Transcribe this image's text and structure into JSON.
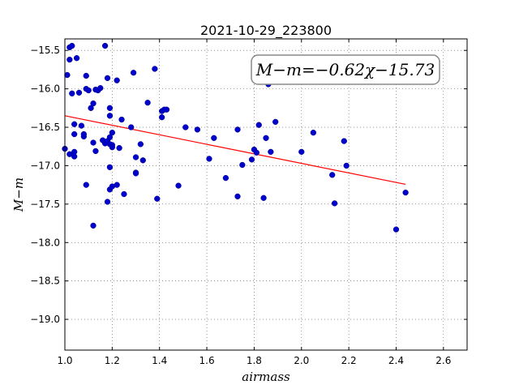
{
  "chart_data": {
    "type": "scatter",
    "title": "2021-10-29_223800",
    "xlabel": "airmass",
    "ylabel": "M−m",
    "xlim": [
      1.0,
      2.7
    ],
    "ylim": [
      -19.4,
      -15.35
    ],
    "y_inverted": true,
    "grid": true,
    "x_ticks": [
      1.0,
      1.2,
      1.4,
      1.6,
      1.8,
      2.0,
      2.2,
      2.4,
      2.6
    ],
    "x_tick_labels": [
      "1.0",
      "1.2",
      "1.4",
      "1.6",
      "1.8",
      "2.0",
      "2.2",
      "2.4",
      "2.6"
    ],
    "y_ticks": [
      -15.5,
      -16.0,
      -16.5,
      -17.0,
      -17.5,
      -18.0,
      -18.5,
      -19.0
    ],
    "y_tick_labels": [
      "−15.5",
      "−16.0",
      "−16.5",
      "−17.0",
      "−17.5",
      "−18.0",
      "−18.5",
      "−19.0"
    ],
    "annotation": "M−m=−0.62χ−15.73",
    "colors": {
      "points": "#0000cc",
      "fit": "#ff0000"
    },
    "points": [
      [
        1.0,
        -16.78
      ],
      [
        1.01,
        -15.82
      ],
      [
        1.02,
        -15.46
      ],
      [
        1.02,
        -15.62
      ],
      [
        1.02,
        -16.85
      ],
      [
        1.03,
        -15.44
      ],
      [
        1.03,
        -16.06
      ],
      [
        1.04,
        -16.46
      ],
      [
        1.04,
        -16.59
      ],
      [
        1.04,
        -16.82
      ],
      [
        1.04,
        -16.88
      ],
      [
        1.05,
        -15.6
      ],
      [
        1.06,
        -16.05
      ],
      [
        1.07,
        -16.48
      ],
      [
        1.08,
        -16.62
      ],
      [
        1.08,
        -16.59
      ],
      [
        1.09,
        -15.83
      ],
      [
        1.09,
        -16.0
      ],
      [
        1.09,
        -17.25
      ],
      [
        1.1,
        -16.02
      ],
      [
        1.11,
        -16.25
      ],
      [
        1.12,
        -16.19
      ],
      [
        1.12,
        -16.7
      ],
      [
        1.12,
        -17.78
      ],
      [
        1.13,
        -16.01
      ],
      [
        1.13,
        -16.81
      ],
      [
        1.14,
        -16.02
      ],
      [
        1.15,
        -15.99
      ],
      [
        1.16,
        -16.67
      ],
      [
        1.17,
        -15.44
      ],
      [
        1.17,
        -16.71
      ],
      [
        1.18,
        -17.47
      ],
      [
        1.18,
        -15.86
      ],
      [
        1.18,
        -16.68
      ],
      [
        1.19,
        -16.25
      ],
      [
        1.19,
        -16.35
      ],
      [
        1.19,
        -16.63
      ],
      [
        1.19,
        -16.72
      ],
      [
        1.19,
        -17.02
      ],
      [
        1.19,
        -17.31
      ],
      [
        1.2,
        -16.57
      ],
      [
        1.2,
        -16.73
      ],
      [
        1.2,
        -16.76
      ],
      [
        1.2,
        -17.27
      ],
      [
        1.22,
        -15.89
      ],
      [
        1.22,
        -17.25
      ],
      [
        1.23,
        -16.77
      ],
      [
        1.24,
        -16.4
      ],
      [
        1.25,
        -17.37
      ],
      [
        1.28,
        -16.5
      ],
      [
        1.29,
        -15.79
      ],
      [
        1.3,
        -16.89
      ],
      [
        1.3,
        -17.09
      ],
      [
        1.3,
        -17.1
      ],
      [
        1.32,
        -16.72
      ],
      [
        1.33,
        -16.93
      ],
      [
        1.35,
        -16.18
      ],
      [
        1.38,
        -15.74
      ],
      [
        1.39,
        -17.43
      ],
      [
        1.41,
        -16.29
      ],
      [
        1.41,
        -16.37
      ],
      [
        1.42,
        -16.27
      ],
      [
        1.43,
        -16.27
      ],
      [
        1.48,
        -17.26
      ],
      [
        1.51,
        -16.5
      ],
      [
        1.56,
        -16.53
      ],
      [
        1.61,
        -16.91
      ],
      [
        1.63,
        -16.64
      ],
      [
        1.68,
        -17.16
      ],
      [
        1.73,
        -16.53
      ],
      [
        1.73,
        -17.4
      ],
      [
        1.75,
        -16.99
      ],
      [
        1.79,
        -16.92
      ],
      [
        1.8,
        -16.79
      ],
      [
        1.81,
        -16.83
      ],
      [
        1.82,
        -16.47
      ],
      [
        1.84,
        -17.42
      ],
      [
        1.85,
        -16.64
      ],
      [
        1.86,
        -15.94
      ],
      [
        1.87,
        -16.82
      ],
      [
        1.89,
        -16.43
      ],
      [
        2.0,
        -16.82
      ],
      [
        2.05,
        -16.57
      ],
      [
        2.13,
        -17.12
      ],
      [
        2.14,
        -17.49
      ],
      [
        2.18,
        -16.68
      ],
      [
        2.19,
        -17.0
      ],
      [
        2.4,
        -17.83
      ],
      [
        2.44,
        -17.35
      ]
    ],
    "fit_line": {
      "slope": -0.62,
      "intercept": -15.73,
      "x_range": [
        1.0,
        2.44
      ]
    }
  }
}
